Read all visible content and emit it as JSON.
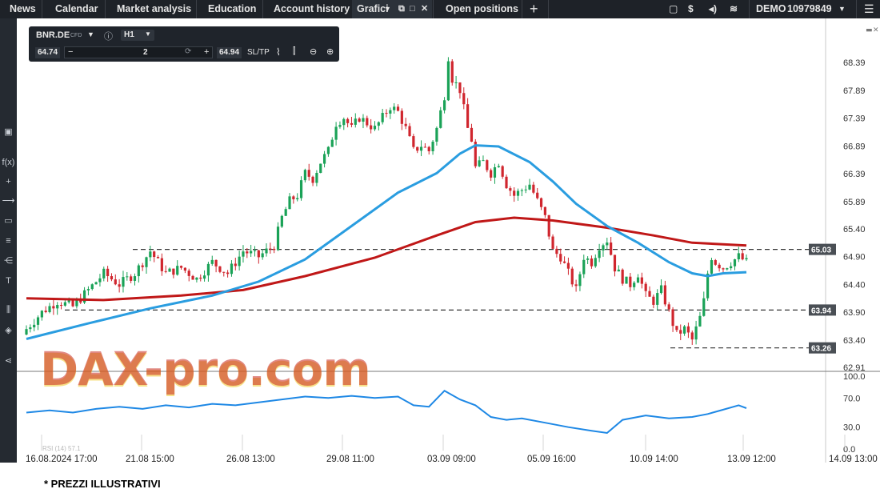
{
  "nav": {
    "news": "News",
    "calendar": "Calendar",
    "market_analysis": "Market analysis",
    "education": "Education",
    "account_history": "Account history",
    "grafici": "Grafici",
    "open_positions": "Open positions",
    "add": "+",
    "account_mode": "DEMO",
    "account_number": "10979849"
  },
  "toolbox": {
    "symbol": "BNR.DE",
    "symbol_type": "CFD",
    "timeframe": "H1",
    "bid": "64.74",
    "quantity": "2",
    "ask": "64.94",
    "sltp": "SL/TP"
  },
  "watermark": "DAX-pro.com",
  "footer_note": "* PREZZI ILLUSTRATIVI",
  "colors": {
    "up": "#1aa257",
    "down": "#d0262e",
    "ema_fast": "#2a9de0",
    "ema_slow": "#c01818",
    "rsi": "#1e88e5",
    "topbar": "#1e2228"
  },
  "chart_data": {
    "type": "candlestick",
    "symbol": "BNR.DE",
    "timeframe": "H1",
    "y_ticks": [
      "68.39",
      "67.89",
      "67.39",
      "66.89",
      "66.39",
      "65.89",
      "65.40",
      "64.90",
      "64.40",
      "63.90",
      "63.40",
      "62.91"
    ],
    "ylim": [
      62.91,
      68.39
    ],
    "x_ticks": [
      "16.08.2024 17:00",
      "21.08 15:00",
      "26.08 13:00",
      "29.08 11:00",
      "03.09 09:00",
      "05.09 16:00",
      "10.09 14:00",
      "13.09 12:00",
      "14.09 13:00"
    ],
    "horizontal_levels": [
      {
        "label": "65.03",
        "value": 65.03
      },
      {
        "label": "63.94",
        "value": 63.94
      },
      {
        "label": "63.26",
        "value": 63.26
      }
    ],
    "close_path": [
      [
        0,
        63.6
      ],
      [
        4,
        63.9
      ],
      [
        8,
        64.1
      ],
      [
        12,
        64.0
      ],
      [
        16,
        64.3
      ],
      [
        20,
        64.6
      ],
      [
        24,
        64.4
      ],
      [
        28,
        64.6
      ],
      [
        32,
        65.0
      ],
      [
        36,
        64.6
      ],
      [
        40,
        64.7
      ],
      [
        44,
        64.5
      ],
      [
        48,
        64.8
      ],
      [
        52,
        64.6
      ],
      [
        56,
        65.0
      ],
      [
        60,
        64.9
      ],
      [
        64,
        65.1
      ],
      [
        66,
        65.6
      ],
      [
        68,
        65.9
      ],
      [
        70,
        66.0
      ],
      [
        72,
        66.4
      ],
      [
        74,
        66.3
      ],
      [
        76,
        66.6
      ],
      [
        78,
        66.8
      ],
      [
        80,
        67.3
      ],
      [
        82,
        67.4
      ],
      [
        84,
        67.2
      ],
      [
        86,
        67.4
      ],
      [
        88,
        67.3
      ],
      [
        90,
        67.2
      ],
      [
        92,
        67.4
      ],
      [
        94,
        67.6
      ],
      [
        96,
        67.5
      ],
      [
        98,
        67.2
      ],
      [
        100,
        66.8
      ],
      [
        102,
        66.9
      ],
      [
        104,
        66.8
      ],
      [
        106,
        67.2
      ],
      [
        108,
        67.8
      ],
      [
        109,
        68.5
      ],
      [
        110,
        68.1
      ],
      [
        111,
        68.0
      ],
      [
        112,
        67.9
      ],
      [
        114,
        67.2
      ],
      [
        115,
        67.0
      ],
      [
        116,
        66.5
      ],
      [
        118,
        66.6
      ],
      [
        120,
        66.4
      ],
      [
        122,
        66.6
      ],
      [
        124,
        66.2
      ],
      [
        126,
        66.0
      ],
      [
        128,
        66.1
      ],
      [
        130,
        66.2
      ],
      [
        132,
        65.9
      ],
      [
        134,
        65.6
      ],
      [
        136,
        65.0
      ],
      [
        138,
        64.9
      ],
      [
        140,
        64.6
      ],
      [
        142,
        64.3
      ],
      [
        144,
        64.9
      ],
      [
        146,
        64.8
      ],
      [
        148,
        65.1
      ],
      [
        150,
        65.2
      ],
      [
        152,
        64.7
      ],
      [
        154,
        64.5
      ],
      [
        156,
        64.4
      ],
      [
        158,
        64.6
      ],
      [
        160,
        64.2
      ],
      [
        162,
        64.1
      ],
      [
        164,
        64.3
      ],
      [
        166,
        63.9
      ],
      [
        168,
        63.5
      ],
      [
        170,
        63.6
      ],
      [
        172,
        63.4
      ],
      [
        174,
        63.8
      ],
      [
        175,
        64.1
      ],
      [
        176,
        64.6
      ],
      [
        177,
        64.9
      ],
      [
        178,
        64.8
      ],
      [
        180,
        64.7
      ],
      [
        182,
        64.8
      ],
      [
        184,
        64.9
      ],
      [
        186,
        64.8
      ]
    ],
    "ema_fast_path": [
      [
        0,
        63.42
      ],
      [
        16,
        63.7
      ],
      [
        32,
        63.97
      ],
      [
        48,
        64.2
      ],
      [
        60,
        64.45
      ],
      [
        72,
        64.85
      ],
      [
        84,
        65.45
      ],
      [
        96,
        66.05
      ],
      [
        106,
        66.4
      ],
      [
        112,
        66.75
      ],
      [
        116,
        66.9
      ],
      [
        122,
        66.88
      ],
      [
        130,
        66.6
      ],
      [
        136,
        66.25
      ],
      [
        142,
        65.85
      ],
      [
        150,
        65.45
      ],
      [
        158,
        65.15
      ],
      [
        166,
        64.8
      ],
      [
        172,
        64.6
      ],
      [
        176,
        64.55
      ],
      [
        180,
        64.6
      ],
      [
        186,
        64.62
      ]
    ],
    "ema_slow_path": [
      [
        0,
        64.15
      ],
      [
        20,
        64.12
      ],
      [
        40,
        64.2
      ],
      [
        56,
        64.3
      ],
      [
        72,
        64.55
      ],
      [
        90,
        64.88
      ],
      [
        106,
        65.28
      ],
      [
        116,
        65.52
      ],
      [
        126,
        65.6
      ],
      [
        136,
        65.55
      ],
      [
        150,
        65.42
      ],
      [
        162,
        65.28
      ],
      [
        172,
        65.15
      ],
      [
        186,
        65.1
      ]
    ],
    "rsi": {
      "label": "RSI (14) 57.1",
      "y_ticks": [
        "100.0",
        "70.0",
        "30.0",
        "0.0"
      ],
      "ylim": [
        0,
        100
      ],
      "values": [
        [
          0,
          50
        ],
        [
          6,
          53
        ],
        [
          12,
          50
        ],
        [
          18,
          55
        ],
        [
          24,
          58
        ],
        [
          30,
          55
        ],
        [
          36,
          60
        ],
        [
          42,
          57
        ],
        [
          48,
          62
        ],
        [
          54,
          60
        ],
        [
          60,
          64
        ],
        [
          66,
          68
        ],
        [
          72,
          72
        ],
        [
          78,
          70
        ],
        [
          84,
          73
        ],
        [
          90,
          70
        ],
        [
          96,
          72
        ],
        [
          100,
          60
        ],
        [
          104,
          58
        ],
        [
          108,
          80
        ],
        [
          112,
          68
        ],
        [
          116,
          60
        ],
        [
          120,
          44
        ],
        [
          124,
          40
        ],
        [
          128,
          42
        ],
        [
          134,
          36
        ],
        [
          140,
          30
        ],
        [
          146,
          25
        ],
        [
          150,
          22
        ],
        [
          154,
          40
        ],
        [
          160,
          46
        ],
        [
          166,
          42
        ],
        [
          172,
          44
        ],
        [
          176,
          48
        ],
        [
          180,
          54
        ],
        [
          184,
          60
        ],
        [
          186,
          56
        ]
      ]
    }
  }
}
